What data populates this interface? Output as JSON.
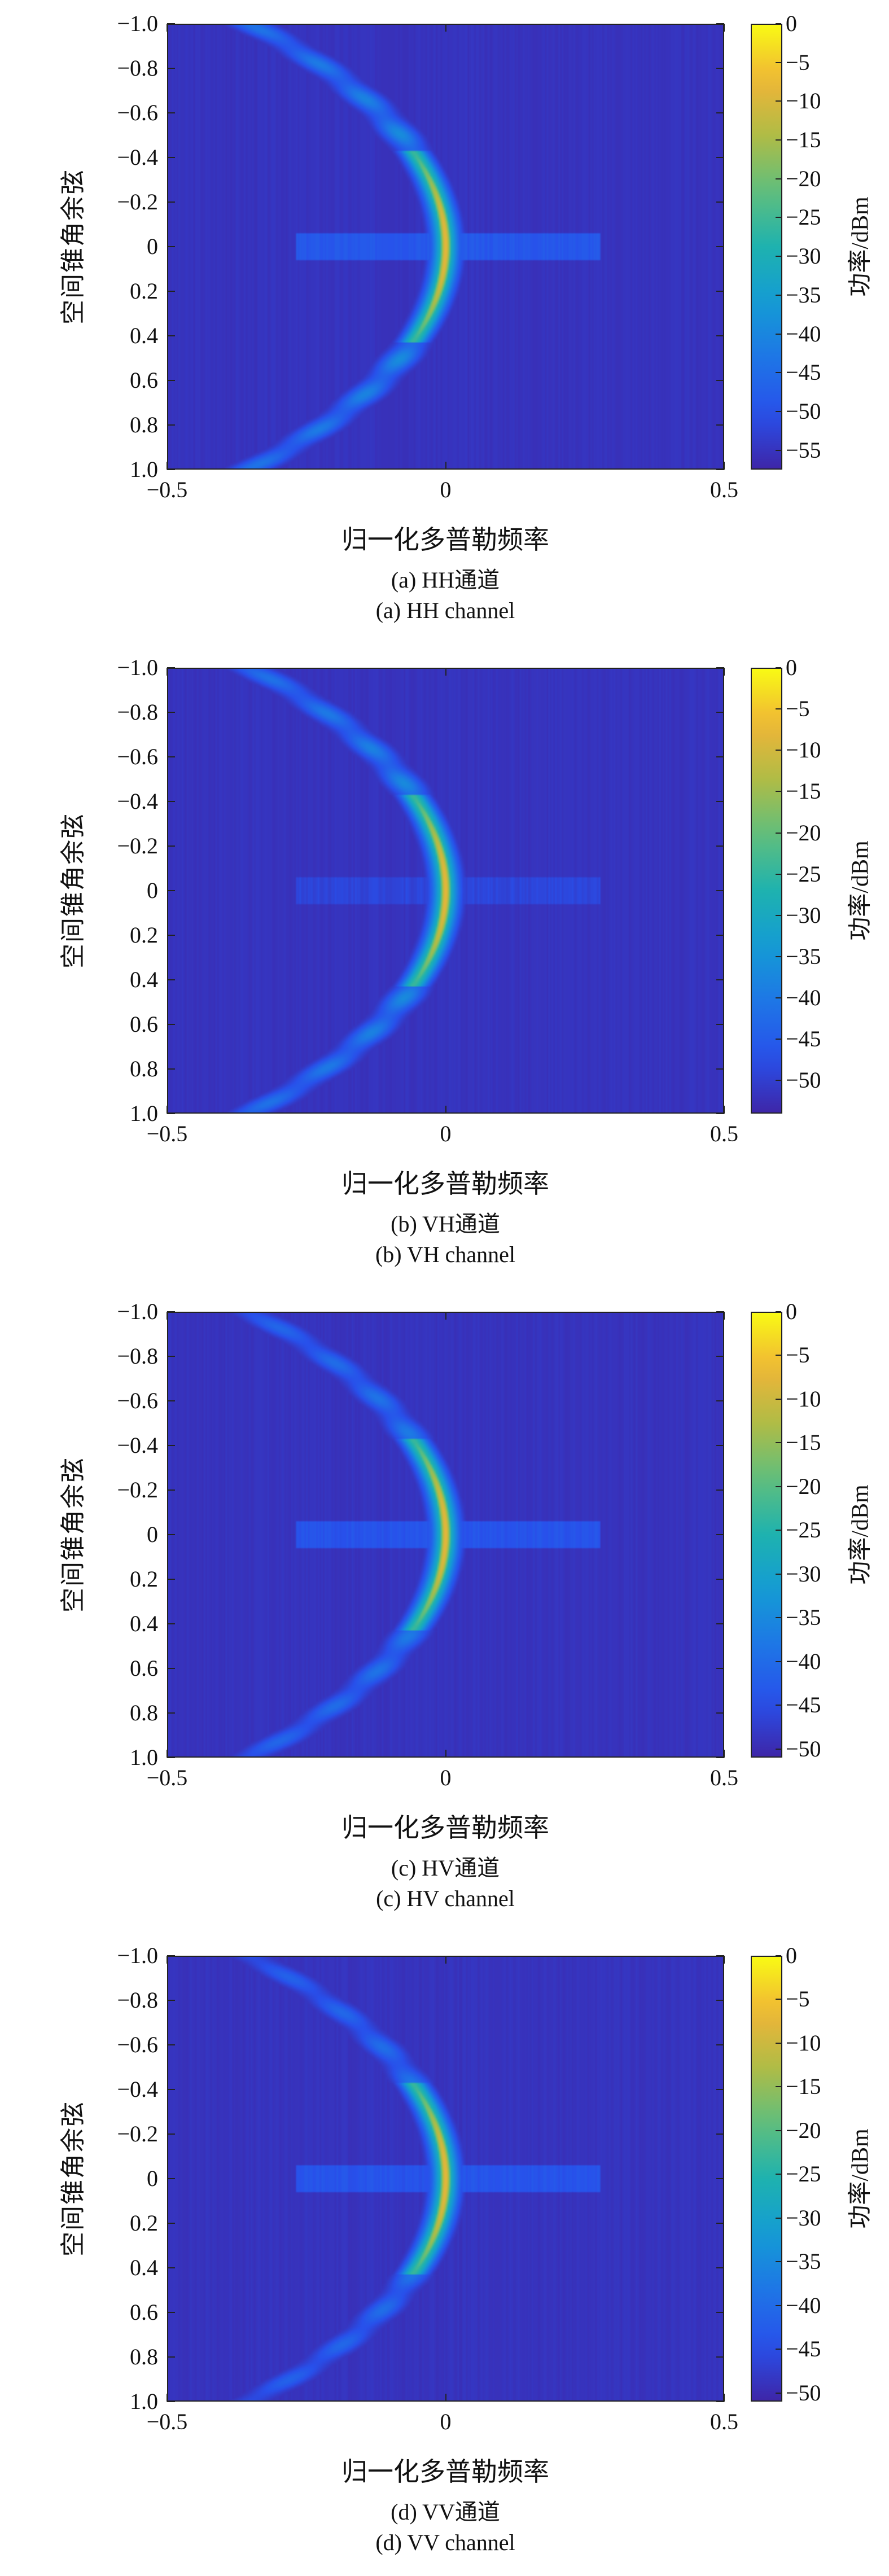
{
  "chart_data": [
    {
      "type": "heatmap",
      "caption_cn": "(a) HH通道",
      "caption_en": "(a) HH channel",
      "xlabel": "归一化多普勒频率",
      "ylabel": "空间锥角余弦",
      "colorbar_label": "功率/dBm",
      "xlim": [
        -0.5,
        0.5
      ],
      "ylim": [
        -1.0,
        1.0
      ],
      "xticks": [
        "−0.5",
        "0",
        "0.5"
      ],
      "xtick_values": [
        -0.5,
        0,
        0.5
      ],
      "yticks": [
        "−1.0",
        "−0.8",
        "−0.6",
        "−0.4",
        "−0.2",
        "0",
        "0.2",
        "0.4",
        "0.6",
        "0.8",
        "1.0"
      ],
      "ytick_values": [
        -1,
        -0.8,
        -0.6,
        -0.4,
        -0.2,
        0,
        0.2,
        0.4,
        0.6,
        0.8,
        1
      ],
      "clim": [
        -57.5,
        0
      ],
      "cticks": [
        "0",
        "−5",
        "−10",
        "−15",
        "−20",
        "−25",
        "−30",
        "−35",
        "−40",
        "−45",
        "−50",
        "−55"
      ],
      "ctick_values": [
        0,
        -5,
        -10,
        -15,
        -20,
        -25,
        -30,
        -35,
        -40,
        -45,
        -50,
        -55
      ],
      "features": {
        "clutter_ridge_peak_dB": -8,
        "clutter_ring_dB": -42,
        "band_dB": -50,
        "band_xrange": [
          -0.27,
          0.28
        ]
      }
    },
    {
      "type": "heatmap",
      "caption_cn": "(b) VH通道",
      "caption_en": "(b) VH channel",
      "xlabel": "归一化多普勒频率",
      "ylabel": "空间锥角余弦",
      "colorbar_label": "功率/dBm",
      "xlim": [
        -0.5,
        0.5
      ],
      "ylim": [
        -1.0,
        1.0
      ],
      "xticks": [
        "−0.5",
        "0",
        "0.5"
      ],
      "xtick_values": [
        -0.5,
        0,
        0.5
      ],
      "yticks": [
        "−1.0",
        "−0.8",
        "−0.6",
        "−0.4",
        "−0.2",
        "0",
        "0.2",
        "0.4",
        "0.6",
        "0.8",
        "1.0"
      ],
      "ytick_values": [
        -1,
        -0.8,
        -0.6,
        -0.4,
        -0.2,
        0,
        0.2,
        0.4,
        0.6,
        0.8,
        1
      ],
      "clim": [
        -54,
        0
      ],
      "cticks": [
        "0",
        "−5",
        "−10",
        "−15",
        "−20",
        "−25",
        "−30",
        "−35",
        "−40",
        "−45",
        "−50"
      ],
      "ctick_values": [
        0,
        -5,
        -10,
        -15,
        -20,
        -25,
        -30,
        -35,
        -40,
        -45,
        -50
      ],
      "features": {
        "clutter_ridge_peak_dB": -8,
        "clutter_ring_dB": -40,
        "band_dB": -50,
        "band_xrange": [
          -0.27,
          0.28
        ]
      }
    },
    {
      "type": "heatmap",
      "caption_cn": "(c) HV通道",
      "caption_en": "(c) HV channel",
      "xlabel": "归一化多普勒频率",
      "ylabel": "空间锥角余弦",
      "colorbar_label": "功率/dBm",
      "xlim": [
        -0.5,
        0.5
      ],
      "ylim": [
        -1.0,
        1.0
      ],
      "xticks": [
        "−0.5",
        "0",
        "0.5"
      ],
      "xtick_values": [
        -0.5,
        0,
        0.5
      ],
      "yticks": [
        "−1.0",
        "−0.8",
        "−0.6",
        "−0.4",
        "−0.2",
        "0",
        "0.2",
        "0.4",
        "0.6",
        "0.8",
        "1.0"
      ],
      "ytick_values": [
        -1,
        -0.8,
        -0.6,
        -0.4,
        -0.2,
        0,
        0.2,
        0.4,
        0.6,
        0.8,
        1
      ],
      "clim": [
        -51,
        0
      ],
      "cticks": [
        "0",
        "−5",
        "−10",
        "−15",
        "−20",
        "−25",
        "−30",
        "−35",
        "−40",
        "−45",
        "−50"
      ],
      "ctick_values": [
        0,
        -5,
        -10,
        -15,
        -20,
        -25,
        -30,
        -35,
        -40,
        -45,
        -50
      ],
      "features": {
        "clutter_ridge_peak_dB": -8,
        "clutter_ring_dB": -40,
        "band_dB": -45,
        "band_xrange": [
          -0.27,
          0.28
        ]
      }
    },
    {
      "type": "heatmap",
      "caption_cn": "(d) VV通道",
      "caption_en": "(d) VV channel",
      "xlabel": "归一化多普勒频率",
      "ylabel": "空间锥角余弦",
      "colorbar_label": "功率/dBm",
      "xlim": [
        -0.5,
        0.5
      ],
      "ylim": [
        -1.0,
        1.0
      ],
      "xticks": [
        "−0.5",
        "0",
        "0.5"
      ],
      "xtick_values": [
        -0.5,
        0,
        0.5
      ],
      "yticks": [
        "−1.0",
        "−0.8",
        "−0.6",
        "−0.4",
        "−0.2",
        "0",
        "0.2",
        "0.4",
        "0.6",
        "0.8",
        "1.0"
      ],
      "ytick_values": [
        -1,
        -0.8,
        -0.6,
        -0.4,
        -0.2,
        0,
        0.2,
        0.4,
        0.6,
        0.8,
        1
      ],
      "clim": [
        -51,
        0
      ],
      "cticks": [
        "0",
        "−5",
        "−10",
        "−15",
        "−20",
        "−25",
        "−30",
        "−35",
        "−40",
        "−45",
        "−50"
      ],
      "ctick_values": [
        0,
        -5,
        -10,
        -15,
        -20,
        -25,
        -30,
        -35,
        -40,
        -45,
        -50
      ],
      "features": {
        "clutter_ridge_peak_dB": -8,
        "clutter_ring_dB": -41,
        "band_dB": -45,
        "band_xrange": [
          -0.27,
          0.28
        ]
      }
    }
  ],
  "colors": {
    "axis": "#222222",
    "colormap": "parula"
  }
}
